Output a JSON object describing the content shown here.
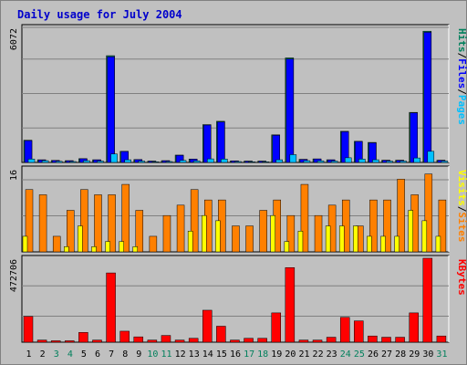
{
  "colors": {
    "background": "#c0c0c0",
    "plot": "#c0c0c0",
    "grid": "#808080",
    "title": "#0000cc",
    "hits": "#00805c",
    "files": "#0000ff",
    "pages": "#00c0ff",
    "visits": "#ff8000",
    "sites": "#ffff00",
    "kbytes": "#ff0000",
    "weekend": "#00805c",
    "weekday": "#000000"
  },
  "chart_data": {
    "type": "bar",
    "title": "Daily usage for July 2004",
    "categories": [
      "1",
      "2",
      "3",
      "4",
      "5",
      "6",
      "7",
      "8",
      "9",
      "10",
      "11",
      "12",
      "13",
      "14",
      "15",
      "16",
      "17",
      "18",
      "19",
      "20",
      "21",
      "22",
      "23",
      "24",
      "25",
      "26",
      "27",
      "28",
      "29",
      "30",
      "31"
    ],
    "weekend_days": [
      "3",
      "4",
      "10",
      "11",
      "17",
      "18",
      "24",
      "25",
      "31"
    ],
    "panels": [
      {
        "max_label": "6072",
        "ylim": [
          0,
          6072
        ],
        "legend": [
          "Pages",
          "/",
          "Files",
          "/",
          "Hits"
        ],
        "series": [
          {
            "name": "Hits",
            "values": [
              1000,
              120,
              90,
              80,
              170,
              120,
              4800,
              500,
              130,
              60,
              80,
              330,
              150,
              1700,
              1850,
              70,
              60,
              60,
              1240,
              4700,
              140,
              160,
              120,
              1400,
              950,
              900,
              100,
              100,
              2250,
              5900,
              100
            ]
          },
          {
            "name": "Files",
            "values": [
              980,
              110,
              85,
              75,
              165,
              115,
              4750,
              490,
              125,
              55,
              75,
              320,
              145,
              1680,
              1820,
              65,
              55,
              55,
              1220,
              4650,
              135,
              155,
              115,
              1380,
              940,
              880,
              95,
              95,
              2230,
              5850,
              95
            ]
          },
          {
            "name": "Pages",
            "values": [
              150,
              80,
              50,
              40,
              80,
              60,
              380,
              120,
              60,
              30,
              40,
              90,
              70,
              160,
              150,
              40,
              30,
              30,
              120,
              350,
              80,
              70,
              60,
              210,
              150,
              120,
              60,
              60,
              200,
              500,
              60
            ]
          }
        ]
      },
      {
        "max_label": "16",
        "ylim": [
          0,
          16
        ],
        "legend": [
          "Sites",
          "/",
          "Visits"
        ],
        "series": [
          {
            "name": "Visits",
            "values": [
              12,
              11,
              3,
              8,
              12,
              11,
              11,
              13,
              8,
              3,
              7,
              9,
              12,
              10,
              10,
              5,
              5,
              8,
              10,
              7,
              13,
              7,
              9,
              10,
              5,
              10,
              10,
              14,
              11,
              15,
              10
            ]
          },
          {
            "name": "Sites",
            "values": [
              3,
              0,
              0,
              1,
              5,
              1,
              2,
              2,
              1,
              0,
              0,
              0,
              4,
              7,
              6,
              0,
              0,
              0,
              7,
              2,
              4,
              0,
              5,
              5,
              5,
              3,
              3,
              3,
              8,
              6,
              3
            ]
          }
        ]
      },
      {
        "max_label": "472706",
        "ylim": [
          0,
          472706
        ],
        "legend": [
          "KBytes"
        ],
        "series": [
          {
            "name": "KBytes",
            "values": [
              145000,
              12000,
              8000,
              8000,
              55000,
              12000,
              390000,
              62000,
              30000,
              12000,
              38000,
              12000,
              22000,
              180000,
              90000,
              12000,
              22000,
              22000,
              165000,
              420000,
              12000,
              12000,
              28000,
              140000,
              120000,
              35000,
              28000,
              28000,
              165000,
              472706,
              35000
            ]
          }
        ]
      }
    ]
  }
}
